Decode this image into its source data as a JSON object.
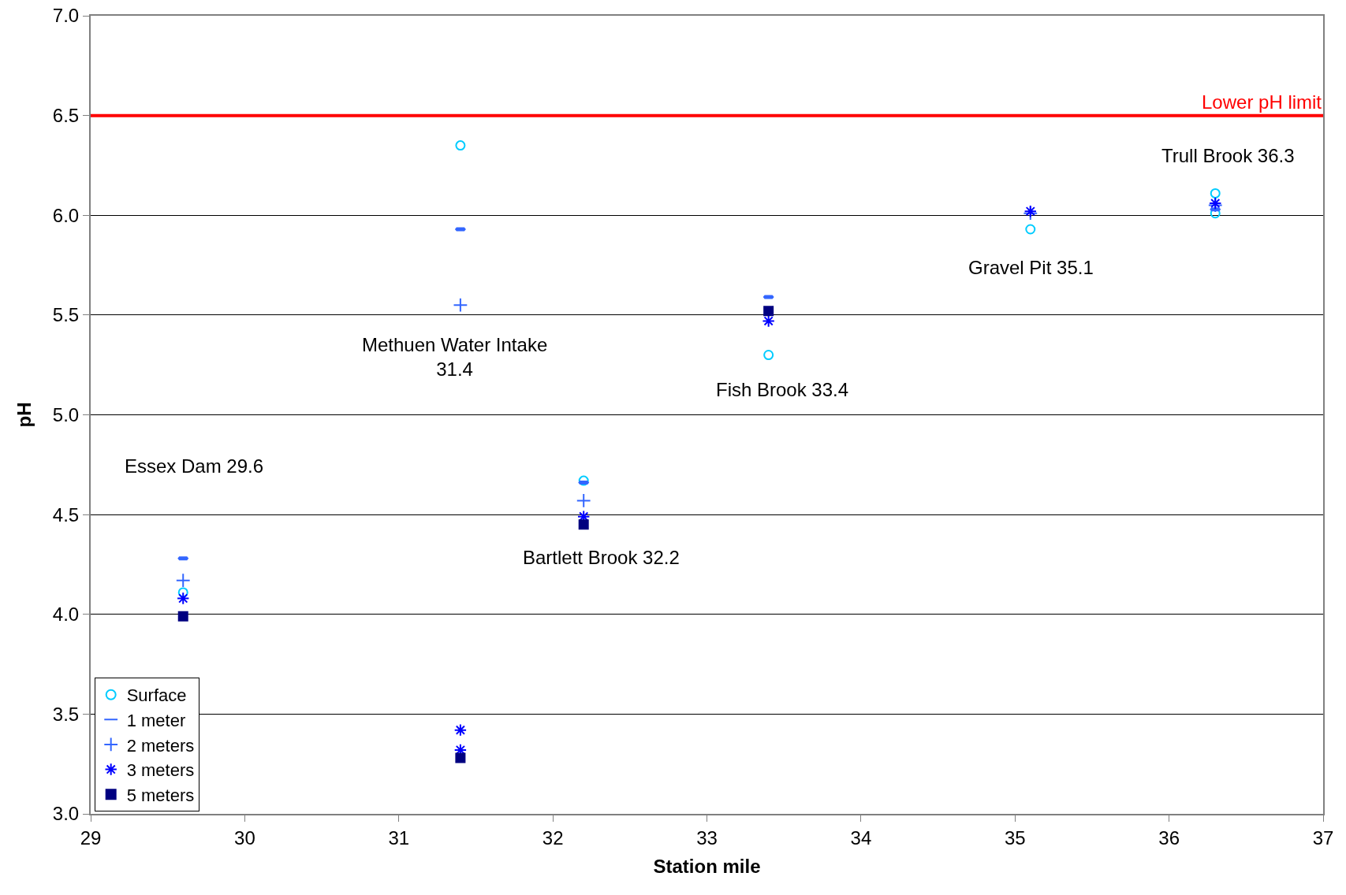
{
  "chart_data": {
    "type": "scatter",
    "xlabel": "Station mile",
    "ylabel": "pH",
    "xlim": [
      29,
      37
    ],
    "xticks": [
      29,
      30,
      31,
      32,
      33,
      34,
      35,
      36,
      37
    ],
    "ylim": [
      3,
      7
    ],
    "yticks": [
      {
        "value": 3,
        "label": "3.0"
      },
      {
        "value": 3.5,
        "label": "3.5"
      },
      {
        "value": 4,
        "label": "4.0"
      },
      {
        "value": 4.5,
        "label": "4.5"
      },
      {
        "value": 5,
        "label": "5.0"
      },
      {
        "value": 5.5,
        "label": "5.5"
      },
      {
        "value": 6,
        "label": "6.0"
      },
      {
        "value": 6.5,
        "label": "6.5"
      },
      {
        "value": 7,
        "label": "7.0"
      }
    ],
    "grid": "y",
    "legend": "bottom left",
    "series": [
      {
        "name": "Surface",
        "color": "#00ccff",
        "marker": "circle",
        "x": [
          29.6,
          31.4,
          32.2,
          33.4,
          35.1,
          36.3,
          36.3
        ],
        "values": [
          4.11,
          6.35,
          4.67,
          5.3,
          5.93,
          6.11,
          6.01
        ]
      },
      {
        "name": "1 meter",
        "color": "#3366ff",
        "x": [
          29.6,
          31.4,
          32.2,
          33.4,
          36.3
        ],
        "values": [
          4.28,
          5.93,
          4.66,
          5.59,
          6.03
        ]
      },
      {
        "name": "2 meters",
        "color": "#3366ff",
        "marker": "cross",
        "x": [
          29.6,
          31.4,
          32.2,
          35.1,
          36.3
        ],
        "values": [
          4.17,
          5.55,
          4.57,
          6.01,
          6.05
        ]
      },
      {
        "name": "3 meters",
        "color": "#0000ff",
        "x": [
          29.6,
          31.4,
          31.4,
          32.2,
          33.4,
          35.1,
          36.3
        ],
        "values": [
          4.08,
          3.42,
          3.32,
          4.49,
          5.47,
          6.02,
          6.06
        ]
      },
      {
        "name": "5 meters",
        "color": "#000080",
        "marker": "square",
        "x": [
          29.6,
          31.4,
          32.2,
          33.4
        ],
        "values": [
          3.99,
          3.28,
          4.45,
          5.52
        ]
      }
    ],
    "ref_lines": [
      {
        "axis": "y",
        "value": 6.5,
        "label": "Lower pH limit",
        "color": "#ff0000"
      }
    ],
    "annotations": [
      "Essex Dam 29.6",
      "Methuen Water Intake\n31.4",
      "Bartlett Brook 32.2",
      "Fish Brook 33.4",
      "Gravel Pit 35.1",
      "Trull Brook 36.3"
    ]
  }
}
